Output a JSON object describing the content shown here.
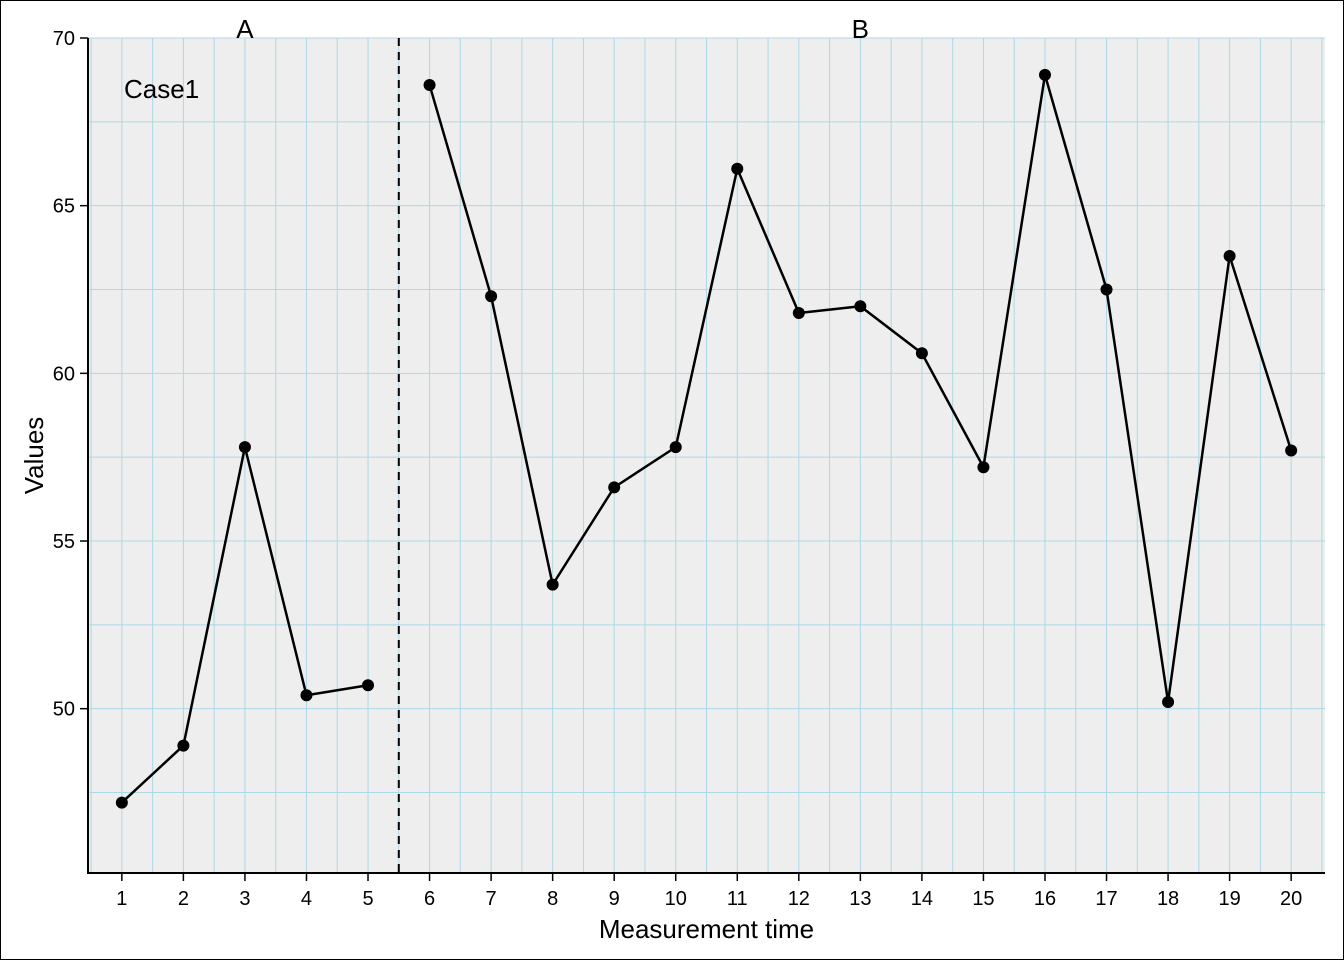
{
  "chart_data": {
    "type": "line",
    "xlabel": "Measurement time",
    "ylabel": "Values",
    "x": [
      1,
      2,
      3,
      4,
      5,
      6,
      7,
      8,
      9,
      10,
      11,
      12,
      13,
      14,
      15,
      16,
      17,
      18,
      19,
      20
    ],
    "xlim": [
      0.45,
      20.55
    ],
    "ylim": [
      45.1,
      70
    ],
    "y_ticks": [
      50,
      55,
      60,
      65,
      70
    ],
    "x_ticks": [
      1,
      2,
      3,
      4,
      5,
      6,
      7,
      8,
      9,
      10,
      11,
      12,
      13,
      14,
      15,
      16,
      17,
      18,
      19,
      20
    ],
    "series": [
      {
        "phase": "A",
        "x": [
          1,
          2,
          3,
          4,
          5
        ],
        "values": [
          47.2,
          48.9,
          57.8,
          50.4,
          50.7
        ]
      },
      {
        "phase": "B",
        "x": [
          6,
          7,
          8,
          9,
          10,
          11,
          12,
          13,
          14,
          15,
          16,
          17,
          18,
          19,
          20
        ],
        "values": [
          68.6,
          62.3,
          53.7,
          56.6,
          57.8,
          66.1,
          61.8,
          62.0,
          60.6,
          57.2,
          68.9,
          62.5,
          50.2,
          63.5,
          57.7
        ]
      }
    ],
    "phase_labels": [
      "A",
      "B"
    ],
    "phase_change_after_x": 5,
    "annotation": "Case1",
    "grid": true,
    "colors": {
      "panel": "#eeeeee",
      "grid": "#add8e6",
      "line": "#000000"
    }
  }
}
